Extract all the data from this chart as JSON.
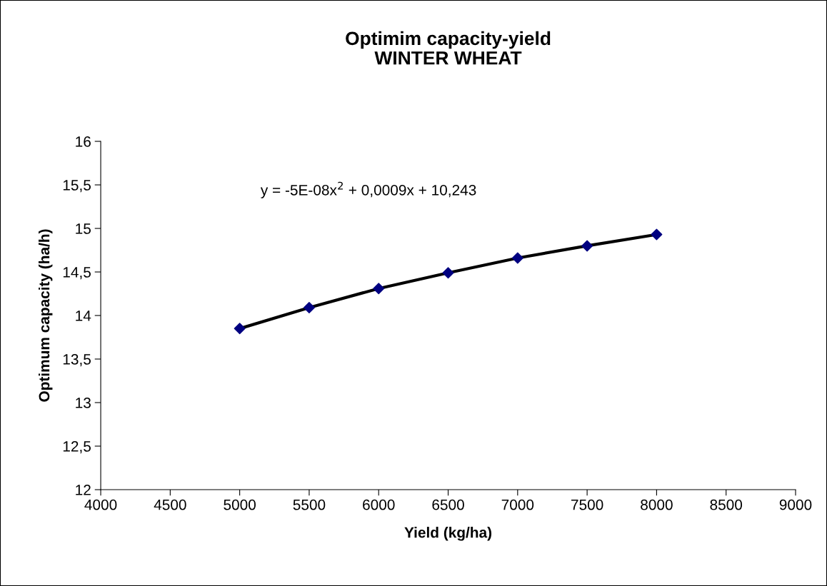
{
  "chart_data": {
    "type": "scatter",
    "title": "Optimim capacity-yield\nWINTER WHEAT",
    "xlabel": "Yield (kg/ha)",
    "ylabel": "Optimum capacity (ha/h)",
    "annotations": [
      "y = -5E-08x$^{2}$ + 0,0009x + 10,243"
    ],
    "x": [
      5000,
      5500,
      6000,
      6500,
      7000,
      7500,
      8000
    ],
    "series": [
      {
        "type": "line",
        "color": "#000000",
        "marker": "none",
        "x": [
          5000,
          5500,
          6000,
          6500,
          7000,
          7500,
          8000
        ],
        "values": [
          13.85,
          14.09,
          14.31,
          14.49,
          14.66,
          14.8,
          14.93
        ]
      },
      {
        "color": "#000080",
        "marker": "diamond",
        "values": [
          13.85,
          14.09,
          14.31,
          14.49,
          14.66,
          14.8,
          14.93
        ]
      }
    ],
    "xlim": [
      4000,
      9000
    ],
    "xticks": [
      4000,
      4500,
      5000,
      5500,
      6000,
      6500,
      7000,
      7500,
      8000,
      8500,
      9000
    ],
    "ylim": [
      12,
      16
    ],
    "yticks": [
      12,
      {
        "value": 12.5,
        "label": "12,5"
      },
      13,
      {
        "value": 13.5,
        "label": "13,5"
      },
      14,
      {
        "value": 14.5,
        "label": "14,5"
      },
      15,
      {
        "value": 15.5,
        "label": "15,5"
      },
      16
    ],
    "grid": false,
    "legend": false
  }
}
